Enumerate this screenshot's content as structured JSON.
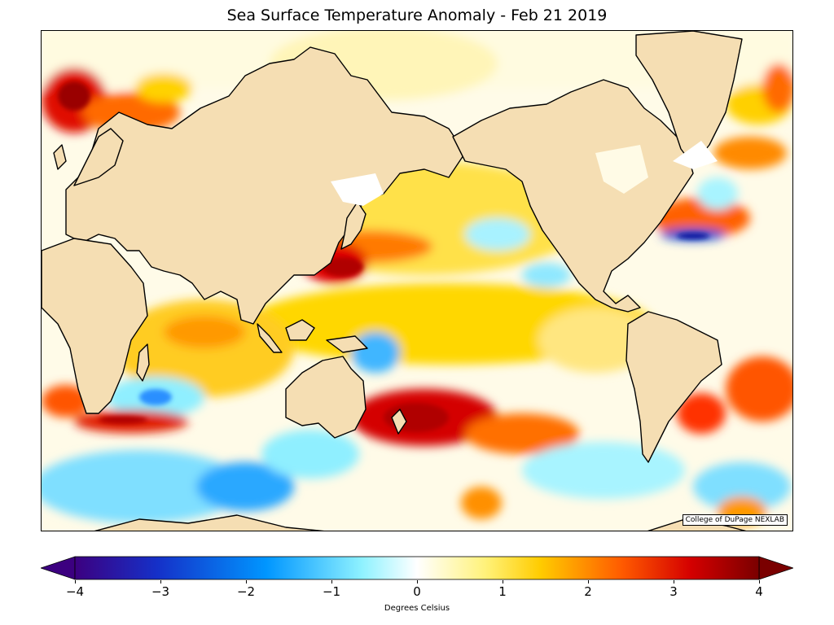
{
  "title": "Sea Surface Temperature Anomaly - Feb 21 2019",
  "credit": "College of DuPage NEXLAB",
  "colorbar": {
    "label": "Degrees Celsius",
    "ticks": [
      "−4",
      "−3",
      "−2",
      "−1",
      "0",
      "1",
      "2",
      "3",
      "4"
    ],
    "range": [
      -4,
      4
    ],
    "colors": {
      "min": "#3c0080",
      "cold_dark": "#1530c8",
      "cold": "#0096ff",
      "cool": "#8ff2ff",
      "neutral": "#ffffff",
      "warm_light": "#fff27a",
      "warm": "#ffcc00",
      "hot": "#ff5a00",
      "very_hot": "#d40000",
      "max": "#7a0000"
    }
  },
  "map": {
    "land_color": "#f5deb3",
    "coastline_color": "#000000"
  }
}
